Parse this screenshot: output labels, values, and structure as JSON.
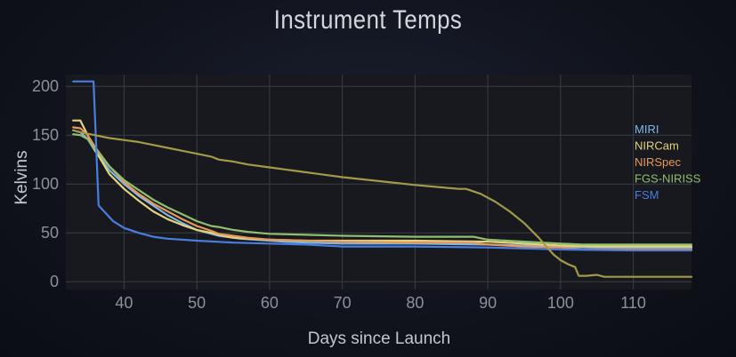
{
  "chart_data": {
    "type": "line",
    "title": "Instrument Temps",
    "xlabel": "Days since Launch",
    "ylabel": "Kelvins",
    "xlim": [
      32,
      118
    ],
    "ylim": [
      -8,
      212
    ],
    "x_ticks": [
      40,
      50,
      60,
      70,
      80,
      90,
      100,
      110
    ],
    "y_ticks": [
      0,
      50,
      100,
      150,
      200
    ],
    "grid": true,
    "legend_position": "right",
    "series": [
      {
        "name": "MIRI",
        "color": "#7db8e8",
        "x": [
          33,
          34,
          35,
          36,
          37,
          38,
          40,
          42,
          44,
          46,
          48,
          50,
          53,
          56,
          58,
          60,
          62,
          65,
          70,
          80,
          90,
          95,
          100,
          105,
          110,
          118
        ],
        "y": [
          155,
          153,
          146,
          134,
          124,
          114,
          100,
          88,
          78,
          68,
          60,
          53,
          47,
          44,
          43,
          42,
          41,
          40,
          39,
          39,
          38,
          37,
          36,
          35,
          35,
          35
        ]
      },
      {
        "name": "NIRCam",
        "color": "#e4d27c",
        "x": [
          33,
          34,
          35,
          36,
          38,
          40,
          42,
          44,
          46,
          48,
          50,
          52,
          53,
          55,
          57,
          60,
          65,
          70,
          80,
          90,
          100,
          105,
          110,
          118
        ],
        "y": [
          165,
          165,
          150,
          135,
          110,
          95,
          83,
          72,
          64,
          58,
          53,
          50,
          48,
          45,
          44,
          43,
          42,
          42,
          42,
          41,
          37,
          36,
          36,
          36
        ]
      },
      {
        "name": "NIRSpec",
        "color": "#e8995a",
        "x": [
          33,
          34,
          35,
          36,
          38,
          40,
          42,
          44,
          46,
          48,
          50,
          52,
          53,
          55,
          57,
          60,
          65,
          70,
          80,
          88,
          90,
          95,
          100,
          103,
          105,
          110,
          118
        ],
        "y": [
          158,
          157,
          150,
          138,
          118,
          102,
          90,
          80,
          72,
          64,
          57,
          52,
          49,
          47,
          45,
          43,
          42,
          41,
          40,
          40,
          38,
          36,
          35,
          33,
          33,
          33,
          33
        ]
      },
      {
        "name": "FGS-NIRISS",
        "color": "#8fbf6f",
        "x": [
          33,
          34,
          35,
          36,
          38,
          40,
          42,
          44,
          46,
          48,
          50,
          52,
          53,
          55,
          57,
          60,
          65,
          70,
          80,
          88,
          90,
          95,
          100,
          103,
          105,
          110,
          118
        ],
        "y": [
          151,
          150,
          146,
          136,
          118,
          104,
          94,
          84,
          76,
          69,
          62,
          57,
          56,
          53,
          51,
          49,
          48,
          47,
          46,
          46,
          43,
          41,
          39,
          38,
          38,
          38,
          38
        ]
      },
      {
        "name": "FSM",
        "color": "#4a7de0",
        "x": [
          33,
          34,
          35,
          35.8,
          36.5,
          37.5,
          38.5,
          40,
          42,
          44,
          46,
          50,
          55,
          60,
          65,
          70,
          80,
          90,
          100,
          110,
          118
        ],
        "y": [
          205,
          205,
          205,
          205,
          78,
          70,
          62,
          55,
          50,
          46,
          44,
          42,
          40,
          39,
          38,
          36,
          36,
          35,
          33,
          32,
          32
        ]
      },
      {
        "name": "",
        "color": "#a39a48",
        "x": [
          33,
          34,
          36,
          38,
          40,
          42,
          44,
          46,
          48,
          50,
          52,
          53,
          55,
          57,
          60,
          62,
          64,
          65,
          67,
          70,
          75,
          80,
          83,
          86,
          87,
          89,
          91,
          93,
          95,
          97,
          99,
          100,
          101,
          102,
          102.5,
          103.5,
          105,
          106,
          110,
          118
        ],
        "y": [
          155,
          153,
          150,
          147,
          145,
          143,
          140,
          137,
          134,
          131,
          128,
          125,
          123,
          120,
          117,
          115,
          113,
          112,
          110,
          107,
          103,
          99,
          97,
          95,
          95,
          90,
          82,
          72,
          60,
          45,
          28,
          22,
          18,
          15,
          6,
          6,
          7,
          5,
          5,
          5
        ]
      }
    ]
  }
}
